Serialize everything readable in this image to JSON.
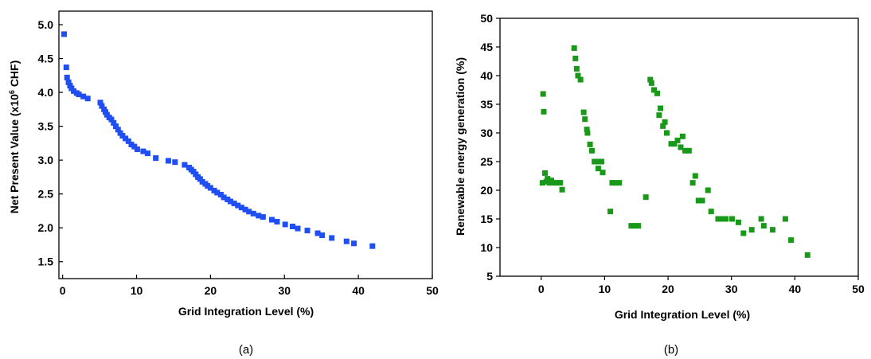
{
  "chart_data": [
    {
      "id": "a",
      "type": "scatter",
      "caption": "(a)",
      "xlabel": "Grid Integration Level (%)",
      "ylabel_parts": [
        "Net Present Value (x10",
        "6",
        " CHF)"
      ],
      "xlim": [
        -0.5,
        50
      ],
      "ylim": [
        1.25,
        5.2
      ],
      "xticks": [
        0,
        10,
        20,
        30,
        40,
        50
      ],
      "xtick_labels": [
        "0",
        "10",
        "20",
        "30",
        "40",
        "50"
      ],
      "yticks": [
        1.5,
        2.0,
        2.5,
        3.0,
        3.5,
        4.0,
        4.5,
        5.0
      ],
      "ytick_labels": [
        "1.5",
        "2.0",
        "2.5",
        "3.0",
        "3.5",
        "4.0",
        "4.5",
        "5.0"
      ],
      "marker_color": "#1f4ef2",
      "marker": "square",
      "points": [
        [
          0.2,
          4.86
        ],
        [
          0.5,
          4.37
        ],
        [
          0.6,
          4.22
        ],
        [
          0.8,
          4.15
        ],
        [
          1.0,
          4.1
        ],
        [
          1.2,
          4.06
        ],
        [
          1.5,
          4.02
        ],
        [
          1.9,
          3.99
        ],
        [
          2.2,
          3.97
        ],
        [
          2.8,
          3.94
        ],
        [
          3.4,
          3.91
        ],
        [
          5.1,
          3.85
        ],
        [
          5.3,
          3.8
        ],
        [
          5.6,
          3.75
        ],
        [
          5.8,
          3.71
        ],
        [
          6.0,
          3.67
        ],
        [
          6.3,
          3.63
        ],
        [
          6.6,
          3.6
        ],
        [
          6.9,
          3.55
        ],
        [
          7.2,
          3.5
        ],
        [
          7.5,
          3.45
        ],
        [
          7.8,
          3.4
        ],
        [
          8.1,
          3.36
        ],
        [
          8.5,
          3.32
        ],
        [
          8.9,
          3.28
        ],
        [
          9.3,
          3.23
        ],
        [
          9.7,
          3.2
        ],
        [
          10.1,
          3.16
        ],
        [
          10.9,
          3.13
        ],
        [
          11.5,
          3.1
        ],
        [
          12.6,
          3.03
        ],
        [
          14.3,
          2.99
        ],
        [
          15.2,
          2.97
        ],
        [
          16.5,
          2.93
        ],
        [
          17.1,
          2.89
        ],
        [
          17.4,
          2.86
        ],
        [
          17.7,
          2.83
        ],
        [
          18.0,
          2.79
        ],
        [
          18.3,
          2.75
        ],
        [
          18.6,
          2.72
        ],
        [
          18.9,
          2.68
        ],
        [
          19.3,
          2.65
        ],
        [
          19.6,
          2.62
        ],
        [
          20.0,
          2.59
        ],
        [
          20.5,
          2.55
        ],
        [
          20.9,
          2.52
        ],
        [
          21.4,
          2.49
        ],
        [
          21.8,
          2.45
        ],
        [
          22.3,
          2.42
        ],
        [
          22.7,
          2.39
        ],
        [
          23.2,
          2.36
        ],
        [
          23.7,
          2.33
        ],
        [
          24.2,
          2.3
        ],
        [
          24.7,
          2.27
        ],
        [
          25.2,
          2.24
        ],
        [
          25.8,
          2.21
        ],
        [
          26.5,
          2.18
        ],
        [
          27.1,
          2.16
        ],
        [
          28.3,
          2.12
        ],
        [
          29.0,
          2.09
        ],
        [
          30.1,
          2.05
        ],
        [
          31.1,
          2.02
        ],
        [
          31.8,
          1.99
        ],
        [
          33.1,
          1.96
        ],
        [
          34.5,
          1.92
        ],
        [
          35.1,
          1.89
        ],
        [
          36.4,
          1.85
        ],
        [
          38.4,
          1.8
        ],
        [
          39.4,
          1.77
        ],
        [
          41.9,
          1.73
        ]
      ]
    },
    {
      "id": "b",
      "type": "scatter",
      "caption": "(b)",
      "xlabel": "Grid Integration Level (%)",
      "ylabel": "Renewable energy generation (%)",
      "xlim": [
        -6.5,
        50
      ],
      "ylim": [
        5,
        50
      ],
      "xticks": [
        0,
        10,
        20,
        30,
        40,
        50
      ],
      "xtick_labels": [
        "0",
        "10",
        "20",
        "30",
        "40",
        "50"
      ],
      "yticks": [
        5,
        10,
        15,
        20,
        25,
        30,
        35,
        40,
        45,
        50
      ],
      "ytick_labels": [
        "5",
        "10",
        "15",
        "20",
        "25",
        "30",
        "35",
        "40",
        "45",
        "50"
      ],
      "marker_color": "#199819",
      "marker": "square",
      "points": [
        [
          0.2,
          21.3
        ],
        [
          0.3,
          36.8
        ],
        [
          0.4,
          33.7
        ],
        [
          0.6,
          23.0
        ],
        [
          0.8,
          21.5
        ],
        [
          1.0,
          22.0
        ],
        [
          1.3,
          21.3
        ],
        [
          1.6,
          21.7
        ],
        [
          2.0,
          21.3
        ],
        [
          2.5,
          21.3
        ],
        [
          3.0,
          21.3
        ],
        [
          3.3,
          20.1
        ],
        [
          5.2,
          44.8
        ],
        [
          5.4,
          43.0
        ],
        [
          5.6,
          41.2
        ],
        [
          5.8,
          40.0
        ],
        [
          6.2,
          39.3
        ],
        [
          6.7,
          33.6
        ],
        [
          6.9,
          32.4
        ],
        [
          7.2,
          30.6
        ],
        [
          7.3,
          30.0
        ],
        [
          7.7,
          28.0
        ],
        [
          8.0,
          26.9
        ],
        [
          8.4,
          25.0
        ],
        [
          8.8,
          25.0
        ],
        [
          9.0,
          23.8
        ],
        [
          9.5,
          25.0
        ],
        [
          9.7,
          23.1
        ],
        [
          10.9,
          16.3
        ],
        [
          11.2,
          21.3
        ],
        [
          11.7,
          21.3
        ],
        [
          12.3,
          21.3
        ],
        [
          14.2,
          13.8
        ],
        [
          14.7,
          13.8
        ],
        [
          15.3,
          13.8
        ],
        [
          16.5,
          18.8
        ],
        [
          17.2,
          39.3
        ],
        [
          17.4,
          38.7
        ],
        [
          17.8,
          37.5
        ],
        [
          18.3,
          36.9
        ],
        [
          18.6,
          33.1
        ],
        [
          18.8,
          34.3
        ],
        [
          19.2,
          31.2
        ],
        [
          19.5,
          31.9
        ],
        [
          19.8,
          30.0
        ],
        [
          20.5,
          28.1
        ],
        [
          21.0,
          28.1
        ],
        [
          21.5,
          28.7
        ],
        [
          22.0,
          27.5
        ],
        [
          22.3,
          29.4
        ],
        [
          22.7,
          26.9
        ],
        [
          23.3,
          26.9
        ],
        [
          23.9,
          21.3
        ],
        [
          24.3,
          22.5
        ],
        [
          24.8,
          18.2
        ],
        [
          25.4,
          18.2
        ],
        [
          26.3,
          20.0
        ],
        [
          26.8,
          16.3
        ],
        [
          27.9,
          15.0
        ],
        [
          28.4,
          15.0
        ],
        [
          29.1,
          15.0
        ],
        [
          30.1,
          15.0
        ],
        [
          31.1,
          14.4
        ],
        [
          31.9,
          12.5
        ],
        [
          33.2,
          13.1
        ],
        [
          34.7,
          15.0
        ],
        [
          35.1,
          13.8
        ],
        [
          36.5,
          13.1
        ],
        [
          38.5,
          15.0
        ],
        [
          39.4,
          11.3
        ],
        [
          42.0,
          8.7
        ]
      ]
    }
  ]
}
